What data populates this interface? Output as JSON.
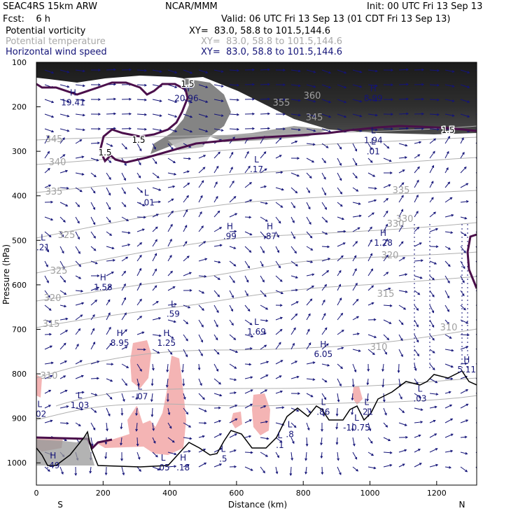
{
  "header": {
    "model": "SEAC4RS 15km ARW",
    "org": "NCAR/MMM",
    "init": "Init: 00 UTC Fri 13 Sep 13",
    "fcst": "Fcst:    6 h",
    "valid": "Valid: 06 UTC Fri 13 Sep 13 (01 CDT Fri 13 Sep 13)",
    "fields": [
      {
        "name": "Potential vorticity",
        "xy": "XY=  83.0, 58.8 to 101.5,144.6",
        "color": "#000000"
      },
      {
        "name": "Potential temperature",
        "xy": "XY=  83.0, 58.8 to 101.5,144.6",
        "color": "#a8a8a8"
      },
      {
        "name": "Horizontal wind speed",
        "xy": "XY=  83.0, 58.8 to 101.5,144.6",
        "color": "#141478"
      }
    ]
  },
  "chart_data": {
    "type": "cross-section",
    "xlabel": "Distance (km)",
    "ylabel": "Pressure (hPa)",
    "xlim": [
      0,
      1320
    ],
    "ylim": [
      1050,
      100
    ],
    "x_ticks": [
      "0",
      "200",
      "400",
      "600",
      "800",
      "1000",
      "1200"
    ],
    "y_ticks": [
      "100",
      "200",
      "300",
      "400",
      "500",
      "600",
      "700",
      "800",
      "900",
      "1000"
    ],
    "endpoints": {
      "left": "S",
      "right": "N"
    },
    "colors": {
      "pv_contour": "#4b0f4b",
      "theta_contour": "#b0b0b0",
      "wind_vectors": "#141478",
      "labels": "#141478",
      "positive_shading": "#f4b4b4",
      "terrain": "#000000"
    },
    "pv_contour_labels": [
      "1.5",
      "1.5",
      "1.5",
      "1.5"
    ],
    "theta_labels": [
      "360",
      "355",
      "345",
      "345",
      "340",
      "335",
      "335",
      "330",
      "330",
      "325",
      "325",
      "320",
      "320",
      "315",
      "315",
      "310",
      "310",
      "310"
    ],
    "extrema": [
      {
        "type": "H",
        "value": "19.41",
        "x": 110,
        "p": 175
      },
      {
        "type": "H",
        "value": "20.96",
        "x": 450,
        "p": 165
      },
      {
        "type": "H",
        "value": "8.99",
        "x": 1010,
        "p": 165
      },
      {
        "type": "L",
        "value": "1.94",
        "x": 1010,
        "p": 260
      },
      {
        "type": "L",
        "value": ".01",
        "x": 1010,
        "p": 285
      },
      {
        "type": "L",
        "value": ".17",
        "x": 660,
        "p": 325
      },
      {
        "type": "L",
        "value": "-.01",
        "x": 330,
        "p": 400
      },
      {
        "type": "H",
        "value": ".99",
        "x": 580,
        "p": 475
      },
      {
        "type": "H",
        "value": ".87",
        "x": 700,
        "p": 475
      },
      {
        "type": "H",
        "value": "1.28",
        "x": 1040,
        "p": 490
      },
      {
        "type": "L",
        "value": ".21",
        "x": 20,
        "p": 500
      },
      {
        "type": "H",
        "value": "1.58",
        "x": 200,
        "p": 590
      },
      {
        "type": "L",
        "value": ".59",
        "x": 410,
        "p": 650
      },
      {
        "type": "L",
        "value": "1.69",
        "x": 660,
        "p": 690
      },
      {
        "type": "H",
        "value": "8.95",
        "x": 250,
        "p": 715
      },
      {
        "type": "H",
        "value": "1.25",
        "x": 390,
        "p": 715
      },
      {
        "type": "H",
        "value": "6.05",
        "x": 860,
        "p": 740
      },
      {
        "type": "H",
        "value": "5.11",
        "x": 1290,
        "p": 775
      },
      {
        "type": "L",
        "value": "-.07",
        "x": 310,
        "p": 835
      },
      {
        "type": "L",
        "value": "1.03",
        "x": 130,
        "p": 855
      },
      {
        "type": "L",
        "value": ".03",
        "x": 1150,
        "p": 840
      },
      {
        "type": "L",
        "value": ".02",
        "x": 10,
        "p": 875
      },
      {
        "type": "L",
        "value": ".86",
        "x": 860,
        "p": 870
      },
      {
        "type": "L",
        "value": ".21",
        "x": 990,
        "p": 870
      },
      {
        "type": "L",
        "value": "-10.75",
        "x": 960,
        "p": 905
      },
      {
        "type": "L",
        "value": ".8",
        "x": 760,
        "p": 920
      },
      {
        "type": "L",
        "value": ".1",
        "x": 730,
        "p": 945
      },
      {
        "type": "L",
        "value": ".5",
        "x": 560,
        "p": 975
      },
      {
        "type": "L",
        "value": ".05",
        "x": 380,
        "p": 995
      },
      {
        "type": "H",
        "value": ".18",
        "x": 440,
        "p": 995
      },
      {
        "type": "H",
        "value": ".49",
        "x": 50,
        "p": 990
      }
    ]
  }
}
